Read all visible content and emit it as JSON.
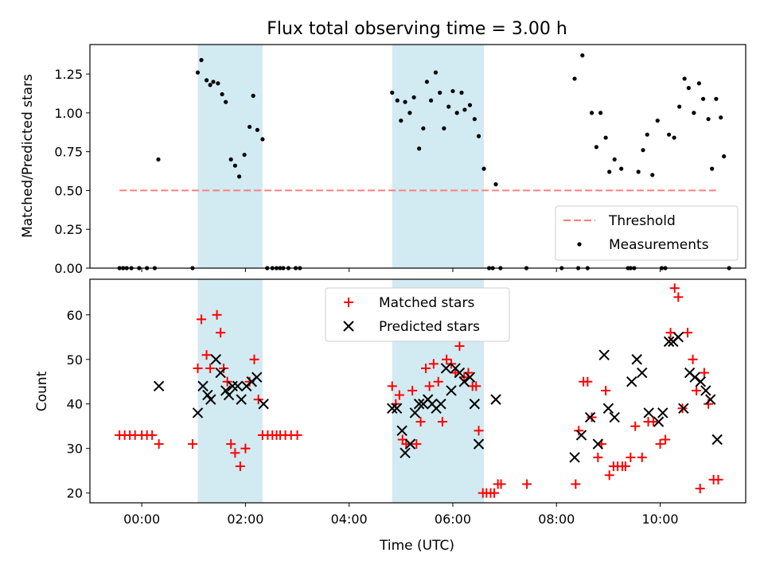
{
  "chart_data": {
    "title": "Flux total observing time = 3.00 h",
    "xlabel": "Time (UTC)",
    "x_ticks": [
      "00:00",
      "02:00",
      "04:00",
      "06:00",
      "08:00",
      "10:00"
    ],
    "x_tick_hours": [
      0,
      2,
      4,
      6,
      8,
      10
    ],
    "xlim_hours": [
      -1.0,
      11.65
    ],
    "shaded_spans_hours": [
      [
        1.08,
        2.33
      ],
      [
        4.83,
        6.6
      ]
    ],
    "colors": {
      "shade": "#add8e6",
      "threshold": "#ff7f7f",
      "measure": "#000000",
      "matched": "#ff0000",
      "predicted": "#000000"
    },
    "panels": [
      {
        "type": "scatter",
        "ylabel": "Matched/Predicted stars",
        "ylim": [
          0,
          1.44
        ],
        "y_ticks": [
          "0.00",
          "0.25",
          "0.50",
          "0.75",
          "1.00",
          "1.25"
        ],
        "y_tick_values": [
          0,
          0.25,
          0.5,
          0.75,
          1.0,
          1.25
        ],
        "legend": {
          "position": "lower-right",
          "threshold_label": "Threshold",
          "measure_label": "Measurements"
        },
        "threshold": {
          "y": 0.5,
          "x_from": -0.43,
          "x_to": 11.08
        },
        "measurements": [
          [
            -0.43,
            0
          ],
          [
            -0.36,
            0
          ],
          [
            -0.29,
            0
          ],
          [
            -0.2,
            0
          ],
          [
            -0.05,
            0
          ],
          [
            0.1,
            0
          ],
          [
            0.25,
            0
          ],
          [
            0.32,
            0.7
          ],
          [
            0.98,
            0
          ],
          [
            1.08,
            1.26
          ],
          [
            1.15,
            1.34
          ],
          [
            1.25,
            1.21
          ],
          [
            1.32,
            1.18
          ],
          [
            1.38,
            1.2
          ],
          [
            1.47,
            1.19
          ],
          [
            1.55,
            1.12
          ],
          [
            1.62,
            1.07
          ],
          [
            1.72,
            0.7
          ],
          [
            1.8,
            0.66
          ],
          [
            1.88,
            0.59
          ],
          [
            1.98,
            0.73
          ],
          [
            2.08,
            0.91
          ],
          [
            2.15,
            1.11
          ],
          [
            2.23,
            0.89
          ],
          [
            2.33,
            0.83
          ],
          [
            2.42,
            0
          ],
          [
            2.52,
            0
          ],
          [
            2.6,
            0
          ],
          [
            2.67,
            0
          ],
          [
            2.73,
            0
          ],
          [
            2.83,
            0
          ],
          [
            2.97,
            0
          ],
          [
            3.05,
            0
          ],
          [
            4.83,
            1.13
          ],
          [
            4.93,
            1.08
          ],
          [
            5.0,
            0.95
          ],
          [
            5.08,
            1.07
          ],
          [
            5.17,
            1.0
          ],
          [
            5.25,
            1.1
          ],
          [
            5.35,
            0.77
          ],
          [
            5.43,
            0.9
          ],
          [
            5.5,
            1.2
          ],
          [
            5.58,
            1.08
          ],
          [
            5.67,
            1.26
          ],
          [
            5.75,
            1.13
          ],
          [
            5.83,
            0.9
          ],
          [
            5.92,
            1.04
          ],
          [
            6.0,
            1.14
          ],
          [
            6.08,
            1.0
          ],
          [
            6.17,
            1.13
          ],
          [
            6.23,
            1.02
          ],
          [
            6.33,
            1.05
          ],
          [
            6.42,
            0.96
          ],
          [
            6.5,
            0.85
          ],
          [
            6.6,
            0.64
          ],
          [
            6.7,
            0
          ],
          [
            6.77,
            0
          ],
          [
            6.83,
            0.54
          ],
          [
            6.92,
            0
          ],
          [
            7.42,
            0
          ],
          [
            8.1,
            0
          ],
          [
            8.35,
            1.22
          ],
          [
            8.42,
            0
          ],
          [
            8.5,
            1.37
          ],
          [
            8.6,
            0
          ],
          [
            8.68,
            1.0
          ],
          [
            8.77,
            0.78
          ],
          [
            8.85,
            1.0
          ],
          [
            8.95,
            0.84
          ],
          [
            9.02,
            0.62
          ],
          [
            9.12,
            0.7
          ],
          [
            9.25,
            0.64
          ],
          [
            9.38,
            0
          ],
          [
            9.43,
            0
          ],
          [
            9.5,
            0
          ],
          [
            9.58,
            0.62
          ],
          [
            9.67,
            0.76
          ],
          [
            9.75,
            0.86
          ],
          [
            9.85,
            0.6
          ],
          [
            9.95,
            0.95
          ],
          [
            10.03,
            0
          ],
          [
            10.1,
            0
          ],
          [
            10.17,
            0.86
          ],
          [
            10.27,
            0.84
          ],
          [
            10.37,
            1.04
          ],
          [
            10.47,
            1.22
          ],
          [
            10.55,
            1.16
          ],
          [
            10.65,
            1.0
          ],
          [
            10.75,
            1.19
          ],
          [
            10.83,
            1.09
          ],
          [
            10.93,
            0.96
          ],
          [
            11.0,
            0.64
          ],
          [
            11.08,
            1.09
          ],
          [
            11.17,
            0.97
          ],
          [
            11.23,
            0.72
          ],
          [
            11.33,
            0
          ]
        ]
      },
      {
        "type": "scatter",
        "ylabel": "Count",
        "ylim": [
          17.8,
          68
        ],
        "y_ticks": [
          "20",
          "30",
          "40",
          "50",
          "60"
        ],
        "y_tick_values": [
          20,
          30,
          40,
          50,
          60
        ],
        "legend": {
          "position": "top-center",
          "matched_label": "Matched stars",
          "predicted_label": "Predicted stars"
        },
        "matched": [
          [
            -0.43,
            33
          ],
          [
            -0.33,
            33
          ],
          [
            -0.23,
            33
          ],
          [
            -0.13,
            33
          ],
          [
            0.0,
            33
          ],
          [
            0.1,
            33
          ],
          [
            0.2,
            33
          ],
          [
            0.33,
            31
          ],
          [
            0.98,
            31
          ],
          [
            1.08,
            48
          ],
          [
            1.15,
            59
          ],
          [
            1.25,
            51
          ],
          [
            1.32,
            48
          ],
          [
            1.45,
            60
          ],
          [
            1.52,
            56
          ],
          [
            1.58,
            48
          ],
          [
            1.65,
            45
          ],
          [
            1.72,
            31
          ],
          [
            1.8,
            29
          ],
          [
            1.9,
            26
          ],
          [
            2.0,
            30
          ],
          [
            2.08,
            45
          ],
          [
            2.17,
            50
          ],
          [
            2.25,
            41
          ],
          [
            2.33,
            33
          ],
          [
            2.43,
            33
          ],
          [
            2.52,
            33
          ],
          [
            2.6,
            33
          ],
          [
            2.67,
            33
          ],
          [
            2.77,
            33
          ],
          [
            2.88,
            33
          ],
          [
            3.0,
            33
          ],
          [
            4.83,
            44
          ],
          [
            4.9,
            40
          ],
          [
            4.97,
            42
          ],
          [
            5.03,
            32
          ],
          [
            5.1,
            31
          ],
          [
            5.22,
            43
          ],
          [
            5.3,
            31
          ],
          [
            5.38,
            36
          ],
          [
            5.48,
            48
          ],
          [
            5.55,
            44
          ],
          [
            5.63,
            49
          ],
          [
            5.72,
            45
          ],
          [
            5.8,
            36
          ],
          [
            5.88,
            50
          ],
          [
            5.97,
            49
          ],
          [
            6.05,
            47
          ],
          [
            6.13,
            53
          ],
          [
            6.22,
            46
          ],
          [
            6.3,
            47
          ],
          [
            6.38,
            44
          ],
          [
            6.45,
            44
          ],
          [
            6.5,
            34
          ],
          [
            6.58,
            20
          ],
          [
            6.65,
            20
          ],
          [
            6.73,
            20
          ],
          [
            6.8,
            20
          ],
          [
            6.87,
            22
          ],
          [
            6.93,
            22
          ],
          [
            7.43,
            22
          ],
          [
            8.37,
            22
          ],
          [
            8.43,
            34
          ],
          [
            8.52,
            45
          ],
          [
            8.6,
            45
          ],
          [
            8.68,
            37
          ],
          [
            8.8,
            28
          ],
          [
            8.87,
            31
          ],
          [
            8.95,
            43
          ],
          [
            9.02,
            24
          ],
          [
            9.1,
            26
          ],
          [
            9.18,
            26
          ],
          [
            9.27,
            26
          ],
          [
            9.33,
            26
          ],
          [
            9.43,
            28
          ],
          [
            9.52,
            35
          ],
          [
            9.65,
            28
          ],
          [
            9.77,
            36
          ],
          [
            9.87,
            36
          ],
          [
            10.0,
            31
          ],
          [
            10.1,
            32
          ],
          [
            10.2,
            56
          ],
          [
            10.28,
            66
          ],
          [
            10.35,
            64
          ],
          [
            10.43,
            39
          ],
          [
            10.53,
            56
          ],
          [
            10.63,
            50
          ],
          [
            10.7,
            43
          ],
          [
            10.77,
            21
          ],
          [
            10.85,
            47
          ],
          [
            10.93,
            40
          ],
          [
            11.03,
            23
          ],
          [
            11.12,
            23
          ]
        ],
        "predicted": [
          [
            0.33,
            44
          ],
          [
            1.08,
            38
          ],
          [
            1.18,
            44
          ],
          [
            1.27,
            42
          ],
          [
            1.33,
            41
          ],
          [
            1.43,
            50
          ],
          [
            1.52,
            47
          ],
          [
            1.62,
            43
          ],
          [
            1.68,
            42
          ],
          [
            1.75,
            44
          ],
          [
            1.85,
            44
          ],
          [
            1.92,
            41
          ],
          [
            2.02,
            44
          ],
          [
            2.12,
            45
          ],
          [
            2.22,
            46
          ],
          [
            2.35,
            40
          ],
          [
            4.83,
            39
          ],
          [
            4.92,
            39
          ],
          [
            5.02,
            34
          ],
          [
            5.08,
            29
          ],
          [
            5.18,
            31
          ],
          [
            5.27,
            38
          ],
          [
            5.35,
            40
          ],
          [
            5.43,
            40
          ],
          [
            5.52,
            41
          ],
          [
            5.6,
            40
          ],
          [
            5.68,
            39
          ],
          [
            5.77,
            40
          ],
          [
            5.87,
            48
          ],
          [
            5.97,
            43
          ],
          [
            6.05,
            48
          ],
          [
            6.13,
            47
          ],
          [
            6.22,
            45
          ],
          [
            6.33,
            46
          ],
          [
            6.42,
            40
          ],
          [
            6.5,
            31
          ],
          [
            6.83,
            41
          ],
          [
            8.35,
            28
          ],
          [
            8.48,
            33
          ],
          [
            8.65,
            37
          ],
          [
            8.8,
            31
          ],
          [
            8.92,
            51
          ],
          [
            9.0,
            39
          ],
          [
            9.12,
            37
          ],
          [
            9.45,
            45
          ],
          [
            9.55,
            50
          ],
          [
            9.65,
            47
          ],
          [
            9.78,
            38
          ],
          [
            9.97,
            36
          ],
          [
            10.05,
            38
          ],
          [
            10.17,
            54
          ],
          [
            10.25,
            54
          ],
          [
            10.35,
            55
          ],
          [
            10.45,
            39
          ],
          [
            10.57,
            47
          ],
          [
            10.67,
            46
          ],
          [
            10.78,
            45
          ],
          [
            10.88,
            43
          ],
          [
            10.97,
            41
          ],
          [
            11.1,
            32
          ]
        ]
      }
    ]
  }
}
